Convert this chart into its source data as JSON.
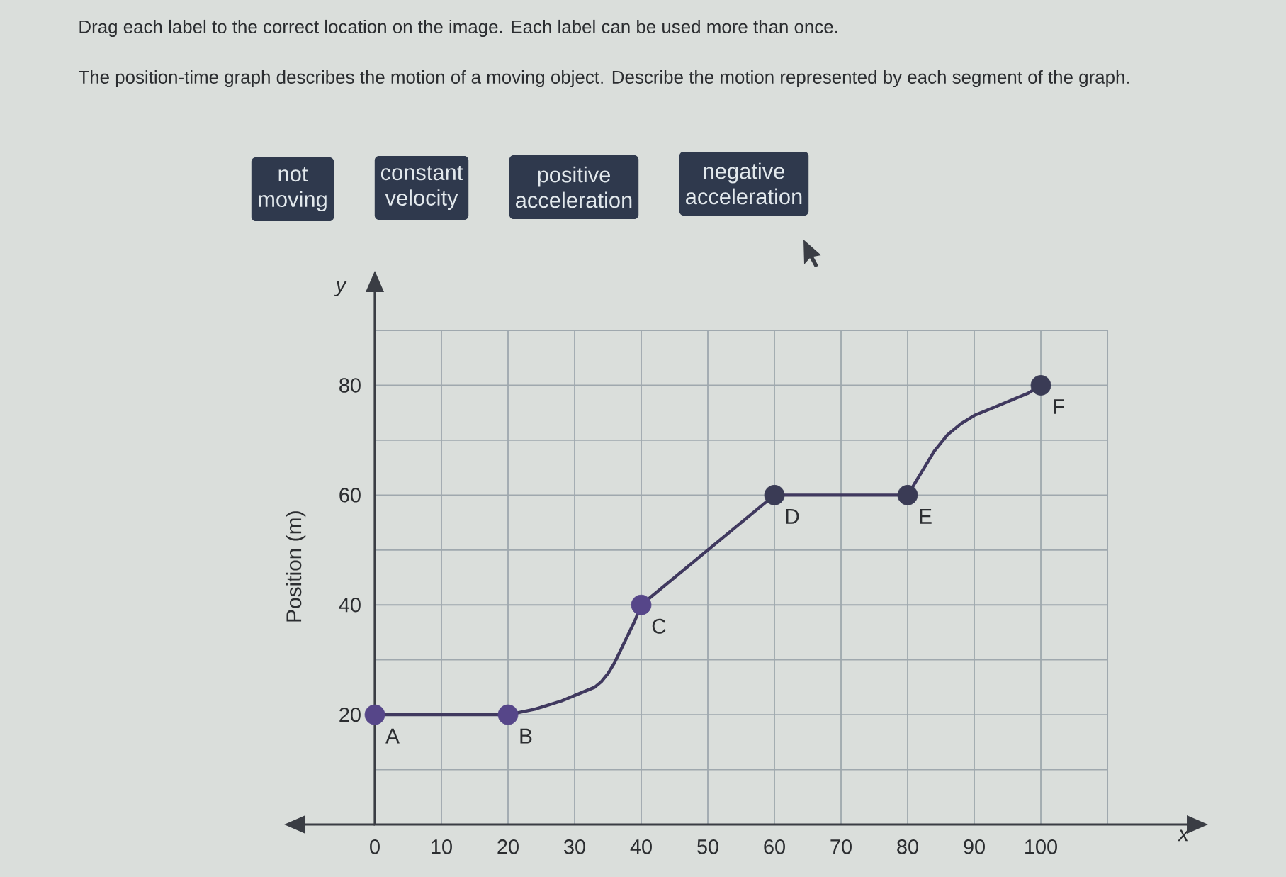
{
  "chart_data": {
    "type": "line",
    "title": "Drag each label to the correct location on the image. Each label can be used more than once.",
    "subtitle": "The position-time graph describes the motion of a moving object. Describe the motion represented by each segment of the graph.",
    "xlabel": "x",
    "ylabel": "Position (m)",
    "annotations": [
      "not moving",
      "constant velocity",
      "positive acceleration",
      "negative acceleration",
      "y",
      {
        "text": "A",
        "x": 0,
        "y": 20
      },
      {
        "text": "B",
        "x": 20,
        "y": 20
      },
      {
        "text": "C",
        "x": 40,
        "y": 40
      },
      {
        "text": "D",
        "x": 60,
        "y": 60
      },
      {
        "text": "E",
        "x": 80,
        "y": 60
      },
      {
        "text": "F",
        "x": 100,
        "y": 80
      }
    ],
    "xlim": [
      0,
      110
    ],
    "ylim": [
      0,
      90
    ],
    "xticks": [
      0,
      10,
      20,
      30,
      40,
      50,
      60,
      70,
      80,
      90,
      100
    ],
    "yticks": [
      {
        "value": 10,
        "label": null
      },
      20,
      {
        "value": 30,
        "label": null
      },
      40,
      {
        "value": 50,
        "label": null
      },
      60,
      {
        "value": 70,
        "label": null
      },
      80
    ],
    "grid": true,
    "series": [
      {
        "color": "#40395f",
        "x": [
          0,
          20,
          24,
          28,
          31,
          33,
          34,
          35,
          36,
          37,
          38,
          39,
          40,
          60,
          80,
          81,
          82,
          83,
          84,
          85,
          86,
          88,
          90,
          93,
          96,
          98,
          100
        ],
        "values": [
          20,
          20,
          21,
          22.5,
          24,
          25,
          26,
          27.5,
          29.5,
          32,
          34.5,
          37,
          40,
          60,
          60,
          62,
          64,
          66,
          68,
          69.5,
          71,
          73,
          74.5,
          76,
          77.5,
          78.5,
          80
        ]
      },
      {
        "type": "scatter",
        "marker": "circle",
        "x": [
          0,
          20,
          40,
          60,
          80,
          100
        ],
        "values": [
          20,
          20,
          40,
          60,
          60,
          80
        ],
        "colors": [
          "#564689",
          "#564689",
          "#564689",
          "#3a3b55",
          "#3a3b55",
          "#3a3b55"
        ]
      }
    ]
  }
}
